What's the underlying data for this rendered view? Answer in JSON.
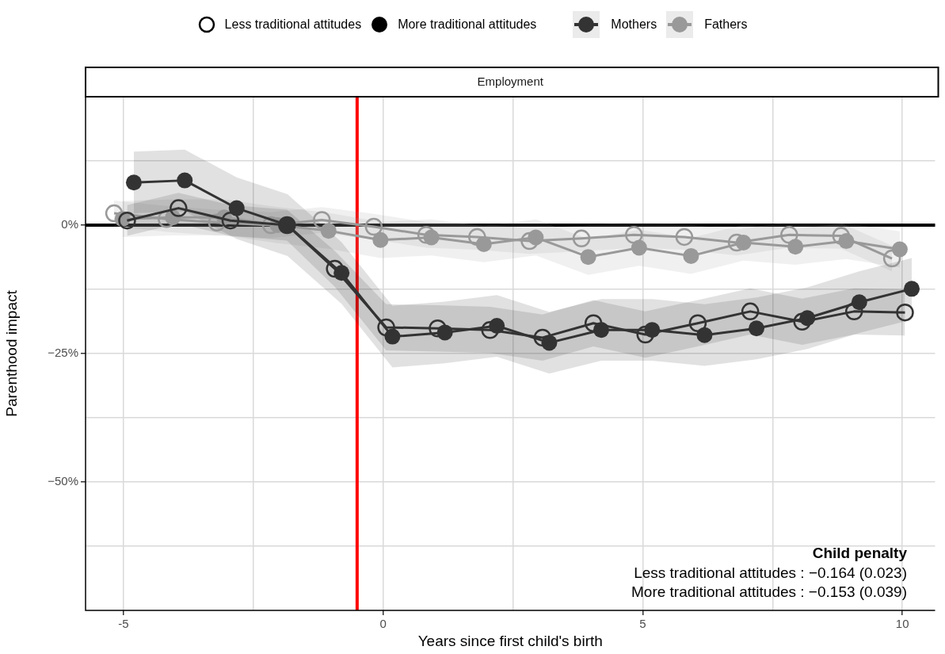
{
  "chart_data": {
    "type": "line",
    "title": "Employment",
    "xlabel": "Years since first child's birth",
    "ylabel": "Parenthood impact",
    "xlim": [
      -5.73,
      10.63
    ],
    "xticks": [
      -5,
      {
        "value": -2.5,
        "label": null
      },
      0,
      {
        "value": 2.5,
        "label": null
      },
      5,
      {
        "value": 7.5,
        "label": null
      },
      10
    ],
    "ylim": [
      -75,
      25
    ],
    "yticks": [
      {
        "value": -62.5,
        "label": null
      },
      {
        "value": -50,
        "label": "−50%"
      },
      {
        "value": -37.5,
        "label": null
      },
      {
        "value": -25,
        "label": "−25%"
      },
      {
        "value": -12.5,
        "label": null
      },
      {
        "value": 0,
        "label": "0%"
      },
      {
        "value": 12.5,
        "label": null
      }
    ],
    "grid": true,
    "legend": "top",
    "marker": "circle",
    "line_style": "solid",
    "ref_lines": [
      {
        "axis": "y",
        "value": 0,
        "color": "#000000"
      },
      {
        "axis": "x",
        "value": -0.5,
        "color": "#ff0000"
      }
    ],
    "annotations": [
      "Less traditional attitudes",
      "More traditional attitudes",
      "Child penalty",
      "Less traditional attitudes : −0.164 (0.023)",
      "More traditional attitudes : −0.153 (0.039)"
    ],
    "series": [
      {
        "color": "#333333",
        "x": [
          -4.93,
          -3.94,
          -2.94,
          -1.85,
          -0.93,
          0.06,
          1.05,
          2.06,
          3.07,
          4.05,
          5.05,
          6.06,
          7.07,
          8.07,
          9.07,
          10.05
        ],
        "values": [
          0.9,
          3.3,
          0.9,
          0,
          -8.5,
          -19.9,
          -20.1,
          -20.4,
          -21.9,
          -19.1,
          -21.3,
          -19.1,
          -16.8,
          -18.8,
          -16.8,
          -17
        ],
        "lower": [
          -2.1,
          0.3,
          -2.1,
          -3,
          -12,
          -24.4,
          -24.6,
          -24.9,
          -26.4,
          -23.6,
          -25.8,
          -23.6,
          -21.3,
          -23.3,
          -21.3,
          -21.5
        ],
        "upper": [
          3.9,
          6.3,
          3.9,
          3,
          -5,
          -15.4,
          -15.6,
          -15.9,
          -17.4,
          -14.6,
          -16.8,
          -14.6,
          -12.3,
          -14.3,
          -12.3,
          -12.5
        ]
      },
      {
        "name": "Mothers",
        "color": "#333333",
        "x": [
          -4.8,
          -3.82,
          -2.82,
          -1.84,
          -0.8,
          0.18,
          1.19,
          2.19,
          3.2,
          4.2,
          5.18,
          6.19,
          7.19,
          8.17,
          9.17,
          10.18
        ],
        "values": [
          8.3,
          8.7,
          3.3,
          0,
          -9.3,
          -21.7,
          -20.9,
          -19.6,
          -22.9,
          -20.4,
          -20.4,
          -21.4,
          -20.1,
          -18.1,
          -15,
          -12.4
        ],
        "lower": [
          2.3,
          2.7,
          -2.7,
          -6,
          -15.3,
          -27.7,
          -26.9,
          -25.6,
          -28.9,
          -26.4,
          -26.4,
          -27.4,
          -26.1,
          -24.1,
          -21,
          -18.4
        ],
        "upper": [
          14.3,
          14.7,
          9.3,
          6,
          -3.3,
          -15.7,
          -14.9,
          -13.6,
          -16.9,
          -14.4,
          -14.4,
          -15.4,
          -14.1,
          -12.1,
          -9,
          -6.4
        ]
      },
      {
        "color": "#999999",
        "x": [
          -5.18,
          -4.17,
          -3.2,
          -2.16,
          -1.18,
          -0.18,
          0.83,
          1.81,
          2.82,
          3.82,
          4.83,
          5.8,
          6.81,
          7.82,
          8.82,
          9.8
        ],
        "values": [
          2.3,
          1.2,
          0.5,
          0,
          1,
          -0.3,
          -1.9,
          -2.3,
          -3.1,
          -2.6,
          -1.9,
          -2.3,
          -3.4,
          -1.9,
          -2.1,
          -6.5
        ],
        "lower": [
          -0.2,
          -1.3,
          -2,
          -2.5,
          -1.5,
          -2.8,
          -4.4,
          -4.8,
          -5.6,
          -5.1,
          -4.4,
          -4.8,
          -5.9,
          -4.4,
          -4.6,
          -9
        ],
        "upper": [
          4.8,
          3.7,
          3,
          2.5,
          3.5,
          2.2,
          0.6,
          0.2,
          -0.6,
          -0.1,
          0.6,
          0.2,
          -0.9,
          0.6,
          0.4,
          -4
        ]
      },
      {
        "name": "Fathers",
        "color": "#999999",
        "x": [
          -5.02,
          -4.05,
          -3.06,
          -2.03,
          -1.05,
          -0.05,
          0.93,
          1.94,
          2.94,
          3.95,
          4.93,
          5.93,
          6.94,
          7.94,
          8.92,
          9.95
        ],
        "values": [
          1.2,
          1.5,
          1.5,
          0,
          -1.1,
          -2.9,
          -2.4,
          -3.7,
          -2.4,
          -6.2,
          -4.4,
          -6,
          -3.4,
          -4.2,
          -3.1,
          -4.7
        ],
        "lower": [
          -2.3,
          -2,
          -2,
          -3.5,
          -4.6,
          -6.4,
          -5.9,
          -7.2,
          -5.9,
          -9.7,
          -7.9,
          -9.5,
          -6.9,
          -7.7,
          -6.6,
          -8.2
        ],
        "upper": [
          4.7,
          5,
          5,
          3.5,
          2.4,
          0.6,
          1.1,
          -0.2,
          1.1,
          -2.7,
          -0.9,
          -2.5,
          0.1,
          -0.7,
          0.4,
          -1.2
        ]
      }
    ]
  }
}
